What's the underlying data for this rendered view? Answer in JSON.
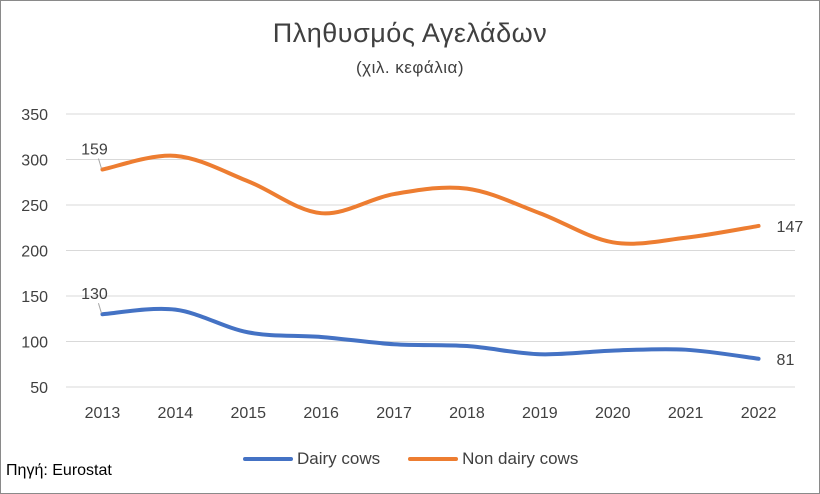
{
  "chart_data": {
    "type": "line",
    "title": "Πληθυσμός Αγελάδων",
    "subtitle": "(χιλ. κεφάλια)",
    "xlabel": "",
    "ylabel": "",
    "categories": [
      "2013",
      "2014",
      "2015",
      "2016",
      "2017",
      "2018",
      "2019",
      "2020",
      "2021",
      "2022"
    ],
    "ylim": [
      50,
      350
    ],
    "yticks": [
      50,
      100,
      150,
      200,
      250,
      300,
      350
    ],
    "grid": true,
    "legend": "bottom",
    "series": [
      {
        "name": "Dairy cows",
        "color": "#4472C4",
        "values": [
          130,
          135,
          110,
          105,
          97,
          95,
          86,
          90,
          91,
          81
        ],
        "labels": [
          {
            "index": 0,
            "text": "130"
          },
          {
            "index": 9,
            "text": "81"
          }
        ]
      },
      {
        "name": "Non dairy cows",
        "color": "#ED7D31",
        "values": [
          289,
          304,
          276,
          241,
          262,
          268,
          241,
          209,
          214,
          227
        ],
        "labels": [
          {
            "index": 0,
            "text": "159"
          },
          {
            "index": 9,
            "text": "147"
          }
        ]
      }
    ]
  },
  "source": "Πηγή: Eurostat"
}
